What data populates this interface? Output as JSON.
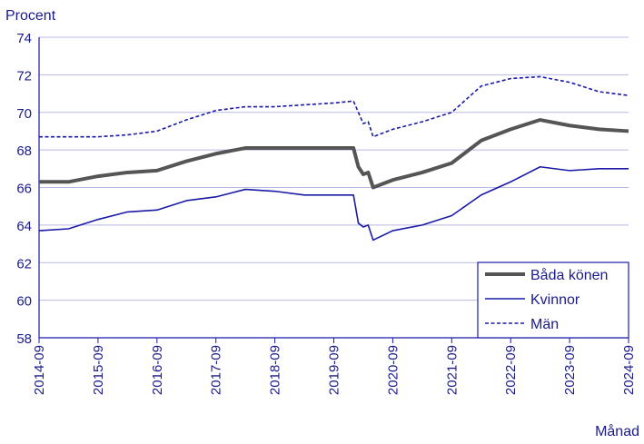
{
  "chart_data": {
    "type": "line",
    "ylabel": "Procent",
    "xlabel": "Månad",
    "ylim": [
      58,
      74
    ],
    "yticks": [
      58,
      60,
      62,
      64,
      66,
      68,
      70,
      72,
      74
    ],
    "xticks": [
      "2014-09",
      "2015-09",
      "2016-09",
      "2017-09",
      "2018-09",
      "2019-09",
      "2020-09",
      "2021-09",
      "2022-09",
      "2023-09",
      "2024-09"
    ],
    "grid": true,
    "legend_position": "bottom-right",
    "series": [
      {
        "name": "Båda könen",
        "color": "#555555",
        "style": "solid-thick",
        "points": [
          [
            "2014-09",
            66.3
          ],
          [
            "2015-03",
            66.3
          ],
          [
            "2015-09",
            66.6
          ],
          [
            "2016-03",
            66.8
          ],
          [
            "2016-09",
            66.9
          ],
          [
            "2017-03",
            67.4
          ],
          [
            "2017-09",
            67.8
          ],
          [
            "2018-03",
            68.1
          ],
          [
            "2018-09",
            68.1
          ],
          [
            "2019-03",
            68.1
          ],
          [
            "2019-09",
            68.1
          ],
          [
            "2020-01",
            68.1
          ],
          [
            "2020-02",
            67.1
          ],
          [
            "2020-03",
            66.7
          ],
          [
            "2020-04",
            66.8
          ],
          [
            "2020-05",
            66.0
          ],
          [
            "2020-09",
            66.4
          ],
          [
            "2021-03",
            66.8
          ],
          [
            "2021-09",
            67.3
          ],
          [
            "2022-03",
            68.5
          ],
          [
            "2022-09",
            69.1
          ],
          [
            "2023-03",
            69.6
          ],
          [
            "2023-09",
            69.3
          ],
          [
            "2024-03",
            69.1
          ],
          [
            "2024-09",
            69.0
          ]
        ]
      },
      {
        "name": "Kvinnor",
        "color": "#1a1aa6",
        "style": "solid",
        "points": [
          [
            "2014-09",
            63.7
          ],
          [
            "2015-03",
            63.8
          ],
          [
            "2015-09",
            64.3
          ],
          [
            "2016-03",
            64.7
          ],
          [
            "2016-09",
            64.8
          ],
          [
            "2017-03",
            65.3
          ],
          [
            "2017-09",
            65.5
          ],
          [
            "2018-03",
            65.9
          ],
          [
            "2018-09",
            65.8
          ],
          [
            "2019-03",
            65.6
          ],
          [
            "2019-09",
            65.6
          ],
          [
            "2020-01",
            65.6
          ],
          [
            "2020-02",
            64.1
          ],
          [
            "2020-03",
            63.9
          ],
          [
            "2020-04",
            64.0
          ],
          [
            "2020-05",
            63.2
          ],
          [
            "2020-09",
            63.7
          ],
          [
            "2021-03",
            64.0
          ],
          [
            "2021-09",
            64.5
          ],
          [
            "2022-03",
            65.6
          ],
          [
            "2022-09",
            66.3
          ],
          [
            "2023-03",
            67.1
          ],
          [
            "2023-09",
            66.9
          ],
          [
            "2024-03",
            67.0
          ],
          [
            "2024-09",
            67.0
          ]
        ]
      },
      {
        "name": "Män",
        "color": "#1a1aa6",
        "style": "dashed",
        "points": [
          [
            "2014-09",
            68.7
          ],
          [
            "2015-03",
            68.7
          ],
          [
            "2015-09",
            68.7
          ],
          [
            "2016-03",
            68.8
          ],
          [
            "2016-09",
            69.0
          ],
          [
            "2017-03",
            69.6
          ],
          [
            "2017-09",
            70.1
          ],
          [
            "2018-03",
            70.3
          ],
          [
            "2018-09",
            70.3
          ],
          [
            "2019-03",
            70.4
          ],
          [
            "2019-09",
            70.5
          ],
          [
            "2020-01",
            70.6
          ],
          [
            "2020-02",
            70.0
          ],
          [
            "2020-03",
            69.4
          ],
          [
            "2020-04",
            69.5
          ],
          [
            "2020-05",
            68.7
          ],
          [
            "2020-09",
            69.1
          ],
          [
            "2021-03",
            69.5
          ],
          [
            "2021-09",
            70.0
          ],
          [
            "2022-03",
            71.4
          ],
          [
            "2022-09",
            71.8
          ],
          [
            "2023-03",
            71.9
          ],
          [
            "2023-09",
            71.6
          ],
          [
            "2024-03",
            71.1
          ],
          [
            "2024-09",
            70.9
          ]
        ]
      }
    ]
  }
}
